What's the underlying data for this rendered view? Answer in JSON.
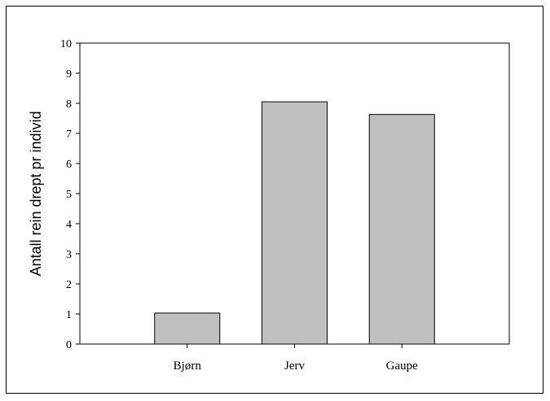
{
  "chart_data": {
    "type": "bar",
    "categories": [
      "Bjørn",
      "Jerv",
      "Gaupe"
    ],
    "values": [
      1.03,
      8.05,
      7.63
    ],
    "title": "",
    "xlabel": "",
    "ylabel": "Antall rein drept pr individ",
    "ylim": [
      0,
      10
    ],
    "yticks": [
      "0",
      "1",
      "2",
      "3",
      "4",
      "5",
      "6",
      "7",
      "8",
      "9",
      "10"
    ],
    "grid": false,
    "legend": false,
    "bar_color": "#c0c0c0",
    "edge_color": "#000000"
  }
}
